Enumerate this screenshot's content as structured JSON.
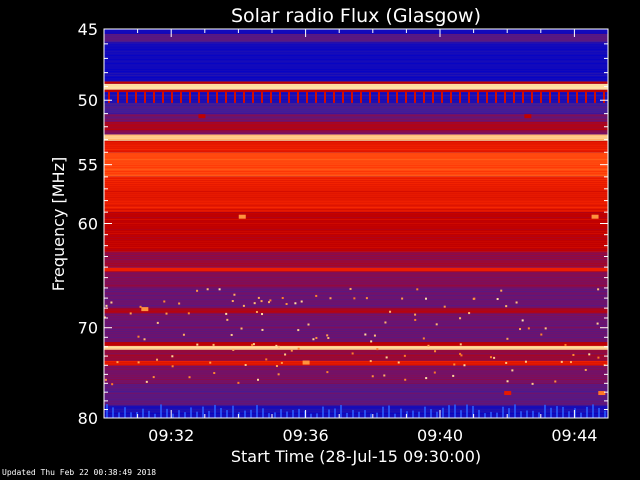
{
  "chart_data": {
    "type": "heatmap",
    "title": "Solar radio Flux (Glasgow)",
    "xlabel": "Start Time (28-Jul-15 09:30:00)",
    "ylabel": "Frequency [MHz]",
    "x_ticks": [
      "09:32",
      "09:36",
      "09:40",
      "09:44"
    ],
    "x_tick_minutes": [
      2,
      6,
      10,
      14
    ],
    "xlim_minutes": [
      0,
      15
    ],
    "y_ticks": [
      45,
      50,
      55,
      60,
      70,
      80
    ],
    "y_scale": "log",
    "ylim": [
      45,
      80
    ],
    "colormap": [
      "#0000c8",
      "#3a1fa0",
      "#7a1060",
      "#c00000",
      "#ff2a00",
      "#ff8a30",
      "#ffe8b0"
    ],
    "bands": [
      {
        "f1": 45.0,
        "f2": 45.3,
        "level": 0.05
      },
      {
        "f1": 45.3,
        "f2": 45.9,
        "level": 0.25
      },
      {
        "f1": 45.9,
        "f2": 48.6,
        "level": 0.05
      },
      {
        "f1": 48.6,
        "f2": 48.8,
        "level": 0.5
      },
      {
        "f1": 48.8,
        "f2": 49.2,
        "level": 0.98
      },
      {
        "f1": 49.2,
        "f2": 49.4,
        "level": 0.5
      },
      {
        "f1": 49.4,
        "f2": 50.2,
        "level": 0.08
      },
      {
        "f1": 50.2,
        "f2": 51.0,
        "level": 0.2
      },
      {
        "f1": 51.0,
        "f2": 51.6,
        "level": 0.3
      },
      {
        "f1": 51.6,
        "f2": 52.3,
        "level": 0.45
      },
      {
        "f1": 52.3,
        "f2": 52.6,
        "level": 0.35
      },
      {
        "f1": 52.6,
        "f2": 53.1,
        "level": 0.95
      },
      {
        "f1": 53.1,
        "f2": 54.0,
        "level": 0.6
      },
      {
        "f1": 54.0,
        "f2": 56.0,
        "level": 0.72
      },
      {
        "f1": 56.0,
        "f2": 59.0,
        "level": 0.6
      },
      {
        "f1": 59.0,
        "f2": 62.5,
        "level": 0.5
      },
      {
        "f1": 62.5,
        "f2": 64.0,
        "level": 0.4
      },
      {
        "f1": 64.0,
        "f2": 64.4,
        "level": 0.62
      },
      {
        "f1": 64.4,
        "f2": 66.0,
        "level": 0.36
      },
      {
        "f1": 66.0,
        "f2": 68.0,
        "level": 0.3
      },
      {
        "f1": 68.0,
        "f2": 68.5,
        "level": 0.45
      },
      {
        "f1": 68.5,
        "f2": 71.5,
        "level": 0.3
      },
      {
        "f1": 71.5,
        "f2": 71.9,
        "level": 0.5
      },
      {
        "f1": 71.9,
        "f2": 72.3,
        "level": 0.95
      },
      {
        "f1": 72.3,
        "f2": 73.5,
        "level": 0.4
      },
      {
        "f1": 73.5,
        "f2": 74.0,
        "level": 0.58
      },
      {
        "f1": 74.0,
        "f2": 76.0,
        "level": 0.32
      },
      {
        "f1": 76.0,
        "f2": 78.5,
        "level": 0.25
      },
      {
        "f1": 78.5,
        "f2": 80.0,
        "level": 0.07
      }
    ],
    "spots": [
      {
        "minute": 2.9,
        "freq": 51.2,
        "level": 0.5
      },
      {
        "minute": 12.6,
        "freq": 51.2,
        "level": 0.5
      },
      {
        "minute": 4.1,
        "freq": 59.4,
        "level": 0.85
      },
      {
        "minute": 14.6,
        "freq": 59.4,
        "level": 0.85
      },
      {
        "minute": 1.2,
        "freq": 68.1,
        "level": 0.85
      },
      {
        "minute": 6.0,
        "freq": 73.7,
        "level": 0.85
      },
      {
        "minute": 12.0,
        "freq": 77.1,
        "level": 0.6
      },
      {
        "minute": 14.8,
        "freq": 77.1,
        "level": 0.8
      }
    ]
  },
  "footer_text": "Updated Thu Feb 22 00:38:49 2018"
}
